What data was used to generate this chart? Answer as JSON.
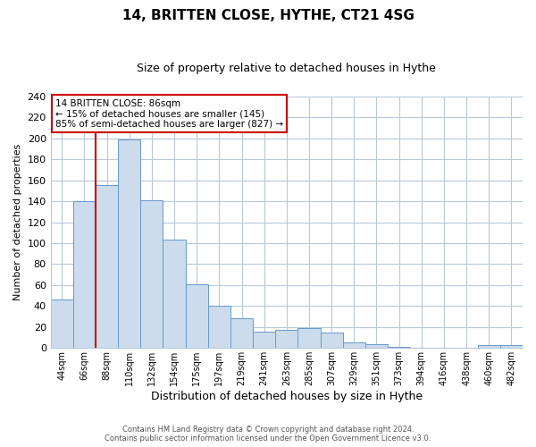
{
  "title": "14, BRITTEN CLOSE, HYTHE, CT21 4SG",
  "subtitle": "Size of property relative to detached houses in Hythe",
  "xlabel": "Distribution of detached houses by size in Hythe",
  "ylabel": "Number of detached properties",
  "bar_labels": [
    "44sqm",
    "66sqm",
    "88sqm",
    "110sqm",
    "132sqm",
    "154sqm",
    "175sqm",
    "197sqm",
    "219sqm",
    "241sqm",
    "263sqm",
    "285sqm",
    "307sqm",
    "329sqm",
    "351sqm",
    "373sqm",
    "394sqm",
    "416sqm",
    "438sqm",
    "460sqm",
    "482sqm"
  ],
  "bar_values": [
    46,
    140,
    155,
    199,
    141,
    103,
    61,
    40,
    28,
    16,
    17,
    19,
    15,
    5,
    4,
    1,
    0,
    0,
    0,
    3,
    3
  ],
  "bar_color": "#ccdcec",
  "bar_edge_color": "#6699cc",
  "highlight_line_color": "#cc0000",
  "highlight_bar_index": 2,
  "ylim": [
    0,
    240
  ],
  "yticks": [
    0,
    20,
    40,
    60,
    80,
    100,
    120,
    140,
    160,
    180,
    200,
    220,
    240
  ],
  "annotation_title": "14 BRITTEN CLOSE: 86sqm",
  "annotation_line1": "← 15% of detached houses are smaller (145)",
  "annotation_line2": "85% of semi-detached houses are larger (827) →",
  "annotation_box_color": "#ffffff",
  "annotation_box_edge": "#cc0000",
  "footer_line1": "Contains HM Land Registry data © Crown copyright and database right 2024.",
  "footer_line2": "Contains public sector information licensed under the Open Government Licence v3.0.",
  "background_color": "#ffffff",
  "grid_color": "#b8c8d8",
  "title_fontsize": 11,
  "subtitle_fontsize": 9,
  "ylabel_fontsize": 8,
  "xlabel_fontsize": 9,
  "tick_fontsize": 8,
  "xtick_fontsize": 7
}
